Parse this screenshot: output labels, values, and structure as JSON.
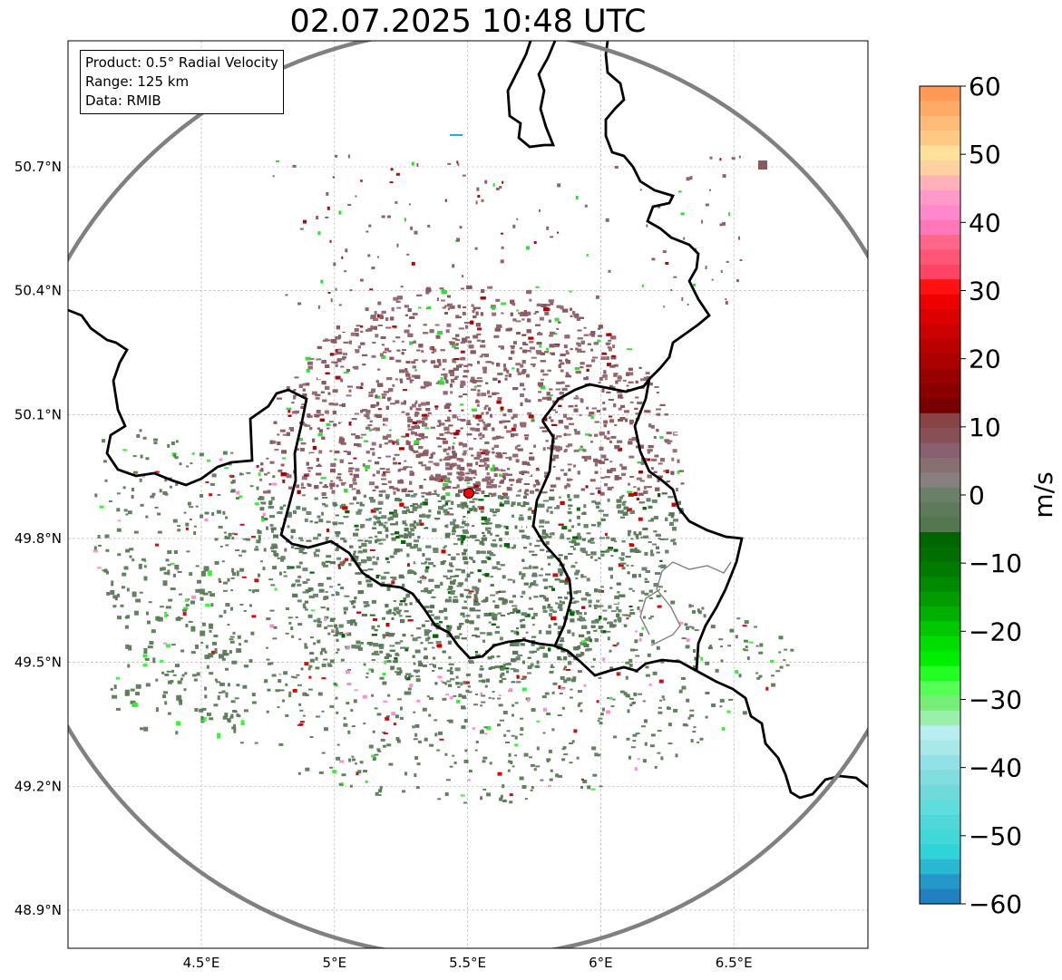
{
  "title": "02.07.2025 10:48 UTC",
  "info_box": {
    "product": "Product: 0.5° Radial Velocity",
    "range": "Range: 125 km",
    "data": "Data: RMIB"
  },
  "map": {
    "lon_ticks": [
      "4.5°E",
      "5°E",
      "5.5°E",
      "6°E",
      "6.5°E"
    ],
    "lat_ticks": [
      "50.7°N",
      "50.4°N",
      "50.1°N",
      "49.8°N",
      "49.5°N",
      "49.2°N",
      "48.9°N"
    ],
    "extent": {
      "lon_min": 4.0,
      "lon_max": 7.0,
      "lat_min": 48.8,
      "lat_max": 50.99
    },
    "radar_site": {
      "lon": 5.5,
      "lat": 49.915
    },
    "range_ring_color": "#808080",
    "border_color": "#000000",
    "radar_marker_color": "#ff0000"
  },
  "colorbar": {
    "unit": "m/s",
    "min": -60,
    "max": 60,
    "ticks": [
      "60",
      "50",
      "40",
      "30",
      "20",
      "10",
      "0",
      "−10",
      "−20",
      "−30",
      "−40",
      "−50",
      "−60"
    ],
    "colors_top_to_bottom": [
      "#ff9955",
      "#ffaa66",
      "#ffbb77",
      "#ffc885",
      "#ffe199",
      "#ffd0a0",
      "#ffb0b8",
      "#ff99c8",
      "#ff88cc",
      "#ff77b8",
      "#ff6688",
      "#ff5577",
      "#ff4466",
      "#ff1111",
      "#ee0000",
      "#dd0000",
      "#cc0000",
      "#bb0000",
      "#aa0000",
      "#990000",
      "#880000",
      "#770000",
      "#884444",
      "#885055",
      "#886070",
      "#887070",
      "#888080",
      "#6b8068",
      "#5f7a5a",
      "#557750",
      "#006600",
      "#006e00",
      "#007a00",
      "#008a00",
      "#009c00",
      "#00b000",
      "#00c800",
      "#00dd00",
      "#00ee00",
      "#22ff22",
      "#55ff55",
      "#77ee77",
      "#99f0aa",
      "#b8eef0",
      "#a8e8e8",
      "#90e2e6",
      "#80dede",
      "#70dada",
      "#60dcdc",
      "#50d8d8",
      "#40d8d8",
      "#30d4d8",
      "#28b8d0",
      "#2498c8",
      "#2080c0"
    ]
  }
}
